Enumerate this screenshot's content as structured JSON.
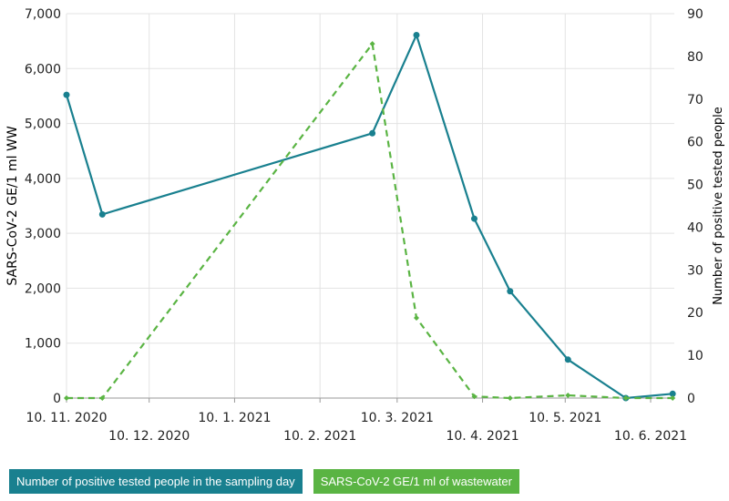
{
  "chart_data": {
    "type": "line",
    "ylabel_left": "SARS-CoV-2 GE/1 ml WW",
    "ylabel_right": "Number of positive tested people",
    "ylim_left": [
      0,
      7000
    ],
    "ylim_right": [
      0,
      90
    ],
    "yticks_left": [
      "0",
      "1,000",
      "2,000",
      "3,000",
      "4,000",
      "5,000",
      "6,000",
      "7,000"
    ],
    "yticks_right": [
      "0",
      "10",
      "20",
      "30",
      "40",
      "50",
      "60",
      "70",
      "80",
      "90"
    ],
    "xticks": [
      {
        "date": "2020-11-10",
        "label": "10. 11. 2020"
      },
      {
        "date": "2020-12-10",
        "label": "10. 12. 2020"
      },
      {
        "date": "2021-01-10",
        "label": "10. 1. 2021"
      },
      {
        "date": "2021-02-10",
        "label": "10. 2. 2021"
      },
      {
        "date": "2021-03-10",
        "label": "10. 3. 2021"
      },
      {
        "date": "2021-04-10",
        "label": "10. 4. 2021"
      },
      {
        "date": "2021-05-10",
        "label": "10. 5. 2021"
      },
      {
        "date": "2021-06-10",
        "label": "10. 6. 2021"
      }
    ],
    "x": [
      "2020-11-10",
      "2020-11-23",
      "2021-03-01",
      "2021-03-17",
      "2021-04-07",
      "2021-04-20",
      "2021-05-11",
      "2021-06-01",
      "2021-06-18"
    ],
    "series": [
      {
        "name": "Number of positive tested people in the sampling day",
        "axis": "right",
        "color": "#19808f",
        "dashed": false,
        "values": [
          71,
          43,
          62,
          85,
          42,
          25,
          9,
          0,
          1
        ]
      },
      {
        "name": "SARS-CoV-2 GE/1 ml of wastewater",
        "axis": "left",
        "color": "#5ab443",
        "dashed": true,
        "values": [
          0,
          0,
          6450,
          1460,
          30,
          0,
          50,
          0,
          0
        ]
      }
    ],
    "grid": true,
    "legend": "bottom-left"
  }
}
